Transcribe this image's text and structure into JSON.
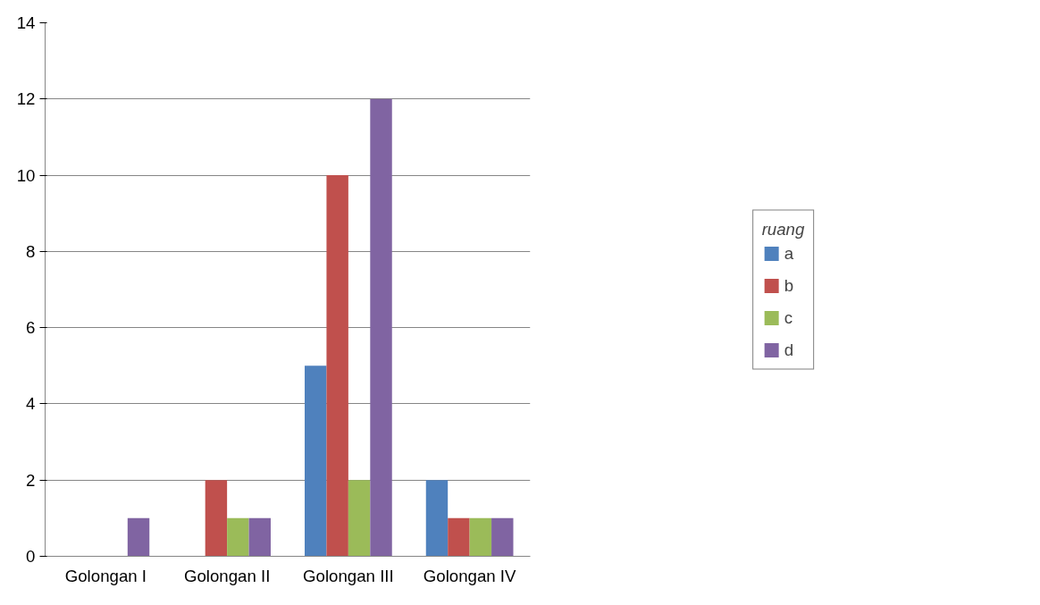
{
  "chart_data": {
    "type": "bar",
    "categories": [
      "Golongan I",
      "Golongan II",
      "Golongan III",
      "Golongan IV"
    ],
    "series": [
      {
        "name": "a",
        "color": "#4f81bd",
        "values": [
          0,
          0,
          5,
          2
        ]
      },
      {
        "name": "b",
        "color": "#c0504d",
        "values": [
          0,
          2,
          10,
          1
        ]
      },
      {
        "name": "c",
        "color": "#9bbb59",
        "values": [
          0,
          1,
          2,
          1
        ]
      },
      {
        "name": "d",
        "color": "#8064a2",
        "values": [
          1,
          1,
          12,
          1
        ]
      }
    ],
    "legend_title": "ruang",
    "legend": "right",
    "ylim": [
      0,
      14
    ],
    "yticks": [
      0,
      2,
      4,
      6,
      8,
      10,
      12,
      14
    ],
    "grid": "y"
  }
}
